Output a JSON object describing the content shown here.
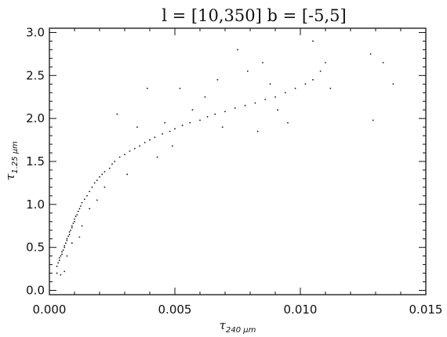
{
  "chart_data": {
    "type": "scatter",
    "title": "l = [10,350]   b = [-5,5]",
    "xlabel": {
      "symbol": "τ",
      "subscript": "240 μm"
    },
    "ylabel": {
      "symbol": "τ",
      "subscript": "1.25 μm"
    },
    "xlim": [
      0.0,
      0.015
    ],
    "ylim": [
      -0.05,
      3.05
    ],
    "xticks": [
      "0.000",
      "0.005",
      "0.010",
      "0.015"
    ],
    "yticks": [
      "0.0",
      "0.5",
      "1.0",
      "1.5",
      "2.0",
      "2.5",
      "3.0"
    ],
    "grid": false,
    "marker_color": "#111111",
    "points": [
      [
        0.0003,
        0.2
      ],
      [
        0.0003,
        0.28
      ],
      [
        0.00035,
        0.32
      ],
      [
        0.0004,
        0.35
      ],
      [
        0.0004,
        0.38
      ],
      [
        0.00045,
        0.4
      ],
      [
        0.0005,
        0.42
      ],
      [
        0.0005,
        0.45
      ],
      [
        0.00055,
        0.47
      ],
      [
        0.0006,
        0.5
      ],
      [
        0.0006,
        0.52
      ],
      [
        0.00065,
        0.55
      ],
      [
        0.0007,
        0.58
      ],
      [
        0.0007,
        0.6
      ],
      [
        0.00075,
        0.63
      ],
      [
        0.0008,
        0.65
      ],
      [
        0.0008,
        0.68
      ],
      [
        0.00085,
        0.7
      ],
      [
        0.0009,
        0.73
      ],
      [
        0.0009,
        0.75
      ],
      [
        0.00095,
        0.78
      ],
      [
        0.001,
        0.8
      ],
      [
        0.001,
        0.83
      ],
      [
        0.00105,
        0.86
      ],
      [
        0.0011,
        0.88
      ],
      [
        0.00115,
        0.92
      ],
      [
        0.0012,
        0.95
      ],
      [
        0.00125,
        0.98
      ],
      [
        0.0013,
        1.02
      ],
      [
        0.0014,
        1.06
      ],
      [
        0.0015,
        1.1
      ],
      [
        0.0016,
        1.15
      ],
      [
        0.0017,
        1.2
      ],
      [
        0.0018,
        1.25
      ],
      [
        0.0019,
        1.28
      ],
      [
        0.002,
        1.32
      ],
      [
        0.0021,
        1.35
      ],
      [
        0.0022,
        1.38
      ],
      [
        0.0024,
        1.42
      ],
      [
        0.0025,
        1.47
      ],
      [
        0.0026,
        1.5
      ],
      [
        0.0028,
        1.55
      ],
      [
        0.003,
        1.58
      ],
      [
        0.0032,
        1.62
      ],
      [
        0.0034,
        1.65
      ],
      [
        0.0036,
        1.68
      ],
      [
        0.0038,
        1.72
      ],
      [
        0.004,
        1.75
      ],
      [
        0.0042,
        1.78
      ],
      [
        0.0045,
        1.82
      ],
      [
        0.0048,
        1.85
      ],
      [
        0.005,
        1.88
      ],
      [
        0.0053,
        1.92
      ],
      [
        0.0056,
        1.95
      ],
      [
        0.006,
        1.98
      ],
      [
        0.0063,
        2.02
      ],
      [
        0.0066,
        2.05
      ],
      [
        0.007,
        2.08
      ],
      [
        0.0074,
        2.12
      ],
      [
        0.0078,
        2.15
      ],
      [
        0.0082,
        2.18
      ],
      [
        0.0086,
        2.22
      ],
      [
        0.009,
        2.25
      ],
      [
        0.0094,
        2.3
      ],
      [
        0.0098,
        2.35
      ],
      [
        0.0102,
        2.4
      ],
      [
        0.0105,
        2.45
      ],
      [
        0.0108,
        2.55
      ],
      [
        0.011,
        2.65
      ],
      [
        0.0112,
        2.35
      ],
      [
        0.0128,
        2.75
      ],
      [
        0.0129,
        1.98
      ],
      [
        0.0133,
        2.65
      ],
      [
        0.0137,
        2.4
      ],
      [
        0.0105,
        2.9
      ],
      [
        0.0085,
        2.65
      ],
      [
        0.0075,
        2.8
      ],
      [
        0.0062,
        2.25
      ],
      [
        0.0057,
        2.1
      ],
      [
        0.0049,
        1.68
      ],
      [
        0.0046,
        1.95
      ],
      [
        0.0039,
        2.35
      ],
      [
        0.0031,
        1.35
      ],
      [
        0.0035,
        1.9
      ],
      [
        0.0027,
        2.05
      ],
      [
        0.0022,
        1.2
      ],
      [
        0.0019,
        1.05
      ],
      [
        0.0016,
        0.95
      ],
      [
        0.0013,
        0.75
      ],
      [
        0.0012,
        0.62
      ],
      [
        0.0009,
        0.55
      ],
      [
        0.0007,
        0.4
      ],
      [
        0.0006,
        0.22
      ],
      [
        0.00045,
        0.18
      ],
      [
        0.0083,
        1.85
      ],
      [
        0.0091,
        2.1
      ],
      [
        0.0095,
        1.95
      ],
      [
        0.0069,
        1.9
      ],
      [
        0.0052,
        2.35
      ],
      [
        0.0043,
        1.55
      ],
      [
        0.0067,
        2.45
      ],
      [
        0.0079,
        2.55
      ],
      [
        0.0088,
        2.4
      ]
    ]
  }
}
